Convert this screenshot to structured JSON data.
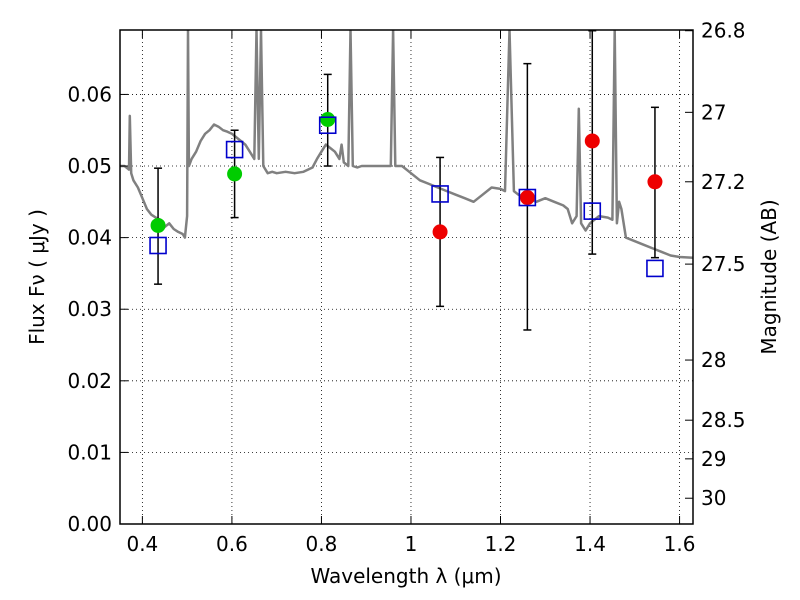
{
  "chart_data": {
    "type": "scatter",
    "xlabel": "Wavelength  λ (μm)",
    "ylabel": "Flux  Fν  ( μJy )",
    "y2label": "Magnitude (AB)",
    "xlim": [
      0.35,
      1.63
    ],
    "ylim": [
      0.0,
      0.069
    ],
    "grid": true,
    "x_ticks": [
      0.4,
      0.6,
      0.8,
      1.0,
      1.2,
      1.4,
      1.6
    ],
    "x_tick_labels": [
      "0.4",
      "0.6",
      "0.8",
      "1",
      "1.2",
      "1.4",
      "1.6"
    ],
    "y_ticks": [
      0.0,
      0.01,
      0.02,
      0.03,
      0.04,
      0.05,
      0.06
    ],
    "y_tick_labels": [
      "0.00",
      "0.01",
      "0.02",
      "0.03",
      "0.04",
      "0.05",
      "0.06"
    ],
    "magnitude_ticks": [
      {
        "label": "26.8",
        "flux": 0.0689
      },
      {
        "label": "27",
        "flux": 0.0575
      },
      {
        "label": "27.2",
        "flux": 0.0478
      },
      {
        "label": "27.5",
        "flux": 0.0363
      },
      {
        "label": "28",
        "flux": 0.0229
      },
      {
        "label": "28.5",
        "flux": 0.0145
      },
      {
        "label": "29",
        "flux": 0.0091
      },
      {
        "label": "30",
        "flux": 0.0036
      }
    ],
    "colors": {
      "model": "#808080",
      "green": "#00cc00",
      "red": "#ee0000",
      "box": "#0000cc",
      "error": "#000000"
    },
    "series": [
      {
        "marker": "circle",
        "color": "green",
        "points": [
          {
            "x": 0.435,
            "y": 0.0417
          },
          {
            "x": 0.606,
            "y": 0.0489
          },
          {
            "x": 0.814,
            "y": 0.0565
          }
        ]
      },
      {
        "marker": "circle",
        "color": "red",
        "points": [
          {
            "x": 1.065,
            "y": 0.0408
          },
          {
            "x": 1.26,
            "y": 0.0456
          },
          {
            "x": 1.405,
            "y": 0.0535
          },
          {
            "x": 1.545,
            "y": 0.0478
          }
        ]
      },
      {
        "marker": "open-square",
        "color": "box",
        "points": [
          {
            "x": 0.435,
            "y": 0.0389
          },
          {
            "x": 0.606,
            "y": 0.0523
          },
          {
            "x": 0.814,
            "y": 0.0557
          },
          {
            "x": 1.065,
            "y": 0.0461
          },
          {
            "x": 1.26,
            "y": 0.0456
          },
          {
            "x": 1.405,
            "y": 0.0437
          },
          {
            "x": 1.545,
            "y": 0.0357
          }
        ]
      }
    ],
    "error_bars": [
      {
        "x": 0.435,
        "low": 0.0335,
        "high": 0.0497
      },
      {
        "x": 0.606,
        "low": 0.0428,
        "high": 0.055
      },
      {
        "x": 0.814,
        "low": 0.05,
        "high": 0.0628
      },
      {
        "x": 1.065,
        "low": 0.0304,
        "high": 0.0512
      },
      {
        "x": 1.26,
        "low": 0.0271,
        "high": 0.0643
      },
      {
        "x": 1.405,
        "low": 0.0377,
        "high": 0.0689
      },
      {
        "x": 1.545,
        "low": 0.0372,
        "high": 0.0582
      }
    ],
    "model_spectrum": [
      [
        0.35,
        0.05
      ],
      [
        0.36,
        0.05
      ],
      [
        0.37,
        0.0495
      ],
      [
        0.372,
        0.057
      ],
      [
        0.375,
        0.049
      ],
      [
        0.38,
        0.048
      ],
      [
        0.39,
        0.047
      ],
      [
        0.4,
        0.0455
      ],
      [
        0.41,
        0.044
      ],
      [
        0.42,
        0.0432
      ],
      [
        0.43,
        0.0428
      ],
      [
        0.44,
        0.0425
      ],
      [
        0.45,
        0.0415
      ],
      [
        0.46,
        0.042
      ],
      [
        0.47,
        0.0412
      ],
      [
        0.48,
        0.0408
      ],
      [
        0.49,
        0.0405
      ],
      [
        0.495,
        0.04
      ],
      [
        0.5,
        0.043
      ],
      [
        0.502,
        0.069
      ],
      [
        0.504,
        0.05
      ],
      [
        0.51,
        0.051
      ],
      [
        0.52,
        0.052
      ],
      [
        0.53,
        0.0535
      ],
      [
        0.54,
        0.0545
      ],
      [
        0.55,
        0.055
      ],
      [
        0.56,
        0.0558
      ],
      [
        0.57,
        0.0555
      ],
      [
        0.58,
        0.055
      ],
      [
        0.59,
        0.0548
      ],
      [
        0.6,
        0.0545
      ],
      [
        0.61,
        0.054
      ],
      [
        0.62,
        0.0535
      ],
      [
        0.63,
        0.053
      ],
      [
        0.64,
        0.052
      ],
      [
        0.65,
        0.051
      ],
      [
        0.655,
        0.069
      ],
      [
        0.66,
        0.051
      ],
      [
        0.665,
        0.069
      ],
      [
        0.67,
        0.05
      ],
      [
        0.68,
        0.049
      ],
      [
        0.69,
        0.0492
      ],
      [
        0.7,
        0.049
      ],
      [
        0.72,
        0.0492
      ],
      [
        0.74,
        0.049
      ],
      [
        0.76,
        0.0492
      ],
      [
        0.78,
        0.0498
      ],
      [
        0.79,
        0.051
      ],
      [
        0.8,
        0.052
      ],
      [
        0.81,
        0.053
      ],
      [
        0.82,
        0.0525
      ],
      [
        0.83,
        0.052
      ],
      [
        0.84,
        0.051
      ],
      [
        0.845,
        0.053
      ],
      [
        0.85,
        0.0505
      ],
      [
        0.86,
        0.05
      ],
      [
        0.865,
        0.069
      ],
      [
        0.87,
        0.05
      ],
      [
        0.88,
        0.0498
      ],
      [
        0.89,
        0.05
      ],
      [
        0.9,
        0.05
      ],
      [
        0.92,
        0.05
      ],
      [
        0.94,
        0.05
      ],
      [
        0.955,
        0.05
      ],
      [
        0.96,
        0.069
      ],
      [
        0.965,
        0.05
      ],
      [
        0.98,
        0.05
      ],
      [
        1.0,
        0.049
      ],
      [
        1.02,
        0.048
      ],
      [
        1.04,
        0.0475
      ],
      [
        1.06,
        0.047
      ],
      [
        1.08,
        0.0465
      ],
      [
        1.1,
        0.046
      ],
      [
        1.12,
        0.0455
      ],
      [
        1.14,
        0.045
      ],
      [
        1.16,
        0.046
      ],
      [
        1.18,
        0.047
      ],
      [
        1.2,
        0.0468
      ],
      [
        1.21,
        0.0465
      ],
      [
        1.22,
        0.069
      ],
      [
        1.23,
        0.0465
      ],
      [
        1.24,
        0.046
      ],
      [
        1.26,
        0.0455
      ],
      [
        1.28,
        0.045
      ],
      [
        1.3,
        0.0455
      ],
      [
        1.32,
        0.045
      ],
      [
        1.34,
        0.0445
      ],
      [
        1.35,
        0.044
      ],
      [
        1.36,
        0.042
      ],
      [
        1.37,
        0.043
      ],
      [
        1.375,
        0.058
      ],
      [
        1.38,
        0.042
      ],
      [
        1.39,
        0.041
      ],
      [
        1.4,
        0.042
      ],
      [
        1.42,
        0.043
      ],
      [
        1.44,
        0.0428
      ],
      [
        1.45,
        0.0425
      ],
      [
        1.455,
        0.069
      ],
      [
        1.46,
        0.042
      ],
      [
        1.465,
        0.045
      ],
      [
        1.47,
        0.044
      ],
      [
        1.48,
        0.04
      ],
      [
        1.5,
        0.0395
      ],
      [
        1.52,
        0.039
      ],
      [
        1.54,
        0.0385
      ],
      [
        1.56,
        0.038
      ],
      [
        1.58,
        0.0375
      ],
      [
        1.6,
        0.0373
      ],
      [
        1.63,
        0.0372
      ]
    ]
  }
}
